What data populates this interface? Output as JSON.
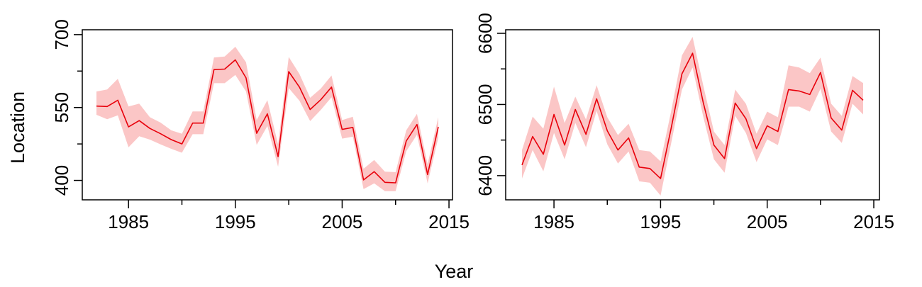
{
  "figure": {
    "ylabel": "Location",
    "xlabel": "Year"
  },
  "colors": {
    "line": "#e8000b",
    "band": "#fbc6c6"
  },
  "chart_data": [
    {
      "type": "line",
      "panel": "left",
      "xlim": [
        1982,
        2014
      ],
      "ylim": [
        360,
        710
      ],
      "xticks": [
        1985,
        1995,
        2005,
        2015
      ],
      "xtick_labels": [
        "1985",
        "1995",
        "2005",
        "2015"
      ],
      "yticks": [
        400,
        550,
        700
      ],
      "ytick_labels": [
        "400",
        "550",
        "700"
      ],
      "grid": false,
      "x": [
        1982,
        1983,
        1984,
        1985,
        1986,
        1987,
        1988,
        1989,
        1990,
        1991,
        1992,
        1993,
        1994,
        1995,
        1996,
        1997,
        1998,
        1999,
        2000,
        2001,
        2002,
        2003,
        2004,
        2005,
        2006,
        2007,
        2008,
        2009,
        2010,
        2011,
        2012,
        2013,
        2014
      ],
      "series": [
        {
          "values": [
            553,
            552,
            565,
            510,
            523,
            507,
            496,
            484,
            475,
            518,
            518,
            628,
            629,
            648,
            611,
            497,
            537,
            449,
            624,
            592,
            546,
            566,
            592,
            505,
            509,
            401,
            418,
            396,
            395,
            481,
            515,
            412,
            510
          ],
          "lower": [
            535,
            526,
            534,
            468,
            491,
            484,
            474,
            465,
            457,
            495,
            495,
            600,
            600,
            617,
            583,
            473,
            512,
            428,
            590,
            564,
            522,
            545,
            571,
            486,
            490,
            382,
            394,
            378,
            378,
            460,
            494,
            394,
            488
          ],
          "upper": [
            583,
            587,
            609,
            552,
            558,
            530,
            519,
            503,
            496,
            542,
            542,
            653,
            655,
            675,
            643,
            524,
            565,
            474,
            654,
            619,
            570,
            589,
            616,
            524,
            531,
            424,
            442,
            418,
            417,
            503,
            537,
            433,
            530
          ]
        }
      ]
    },
    {
      "type": "line",
      "panel": "right",
      "xlim": [
        1982,
        2014
      ],
      "ylim": [
        6366,
        6605
      ],
      "xticks": [
        1985,
        1995,
        2005,
        2015
      ],
      "xtick_labels": [
        "1985",
        "1995",
        "2005",
        "2015"
      ],
      "yticks": [
        6400,
        6500,
        6600
      ],
      "ytick_labels": [
        "6400",
        "6500",
        "6600"
      ],
      "grid": false,
      "x": [
        1982,
        1983,
        1984,
        1985,
        1986,
        1987,
        1988,
        1989,
        1990,
        1991,
        1992,
        1993,
        1994,
        1995,
        1996,
        1997,
        1998,
        1999,
        2000,
        2001,
        2002,
        2003,
        2004,
        2005,
        2006,
        2007,
        2008,
        2009,
        2010,
        2011,
        2012,
        2013,
        2014
      ],
      "series": [
        {
          "values": [
            6415,
            6455,
            6430,
            6486,
            6443,
            6493,
            6458,
            6508,
            6463,
            6436,
            6453,
            6412,
            6410,
            6396,
            6467,
            6543,
            6572,
            6503,
            6443,
            6424,
            6502,
            6480,
            6438,
            6470,
            6462,
            6521,
            6519,
            6514,
            6545,
            6481,
            6464,
            6520,
            6506
          ],
          "lower": [
            6396,
            6436,
            6406,
            6460,
            6423,
            6474,
            6440,
            6491,
            6444,
            6417,
            6434,
            6392,
            6390,
            6372,
            6446,
            6521,
            6552,
            6483,
            6423,
            6404,
            6484,
            6460,
            6419,
            6451,
            6443,
            6497,
            6497,
            6490,
            6522,
            6462,
            6446,
            6501,
            6486
          ],
          "upper": [
            6436,
            6483,
            6466,
            6525,
            6474,
            6511,
            6479,
            6527,
            6482,
            6457,
            6473,
            6436,
            6434,
            6420,
            6491,
            6569,
            6595,
            6527,
            6462,
            6443,
            6521,
            6501,
            6459,
            6490,
            6482,
            6555,
            6552,
            6544,
            6566,
            6501,
            6484,
            6540,
            6530
          ]
        }
      ]
    }
  ]
}
